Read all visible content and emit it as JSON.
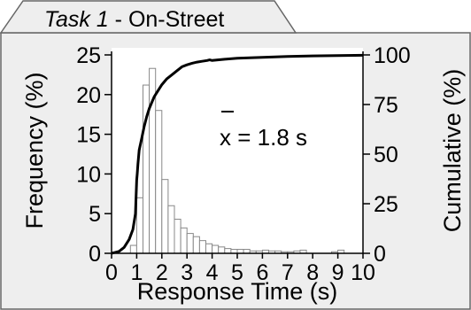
{
  "panel": {
    "title_italic": "Task 1",
    "title_rest": " - On-Street"
  },
  "chart_data": {
    "type": "bar",
    "xlabel": "Response Time (s)",
    "ylabel_left": "Frequency (%)",
    "ylabel_right": "Cumulative (%)",
    "xlim": [
      0,
      10
    ],
    "ylim_left": [
      0,
      25
    ],
    "ylim_right": [
      0,
      100
    ],
    "x_ticks": [
      "0",
      "1",
      "2",
      "3",
      "4",
      "5",
      "6",
      "7",
      "8",
      "9",
      "10"
    ],
    "y_left_ticks": [
      "0",
      "5",
      "10",
      "15",
      "20",
      "25"
    ],
    "y_right_ticks": [
      "0",
      "25",
      "50",
      "75",
      "100"
    ],
    "bin_width": 0.25,
    "bins_start": [
      0.75,
      1.0,
      1.25,
      1.5,
      1.75,
      2.0,
      2.25,
      2.5,
      2.75,
      3.0,
      3.25,
      3.5,
      3.75,
      4.0,
      4.25,
      4.5,
      4.75,
      5.0,
      5.25,
      5.5,
      5.75,
      6.0,
      6.25,
      6.5,
      6.75,
      7.0,
      7.25,
      7.5,
      8.75,
      9.0
    ],
    "frequency": [
      1.0,
      7.0,
      21.2,
      23.3,
      18.0,
      9.3,
      6.0,
      4.3,
      3.2,
      2.5,
      2.1,
      1.6,
      1.2,
      1.0,
      0.8,
      0.6,
      0.5,
      0.5,
      0.5,
      0.3,
      0.3,
      0.4,
      0.3,
      0.3,
      0.2,
      0.2,
      0.3,
      0.4,
      0.2,
      0.4
    ],
    "cumulative_series": {
      "x": [
        0.0,
        0.3,
        0.5,
        0.7,
        0.85,
        0.95,
        1.0,
        1.02,
        1.05,
        1.1,
        1.2,
        1.3,
        1.4,
        1.5,
        1.6,
        1.7,
        1.8,
        2.0,
        2.2,
        2.4,
        2.6,
        2.8,
        3.0,
        3.2,
        3.4,
        3.6,
        3.8,
        3.9,
        4.0,
        4.5,
        5.0,
        6.0,
        7.0,
        8.0,
        9.0,
        10.0
      ],
      "y": [
        0,
        1,
        3,
        7,
        12,
        20,
        37,
        40,
        45,
        52,
        58,
        64,
        69,
        73,
        76,
        79,
        81,
        85,
        88,
        90,
        92,
        94,
        95,
        95.8,
        96.4,
        96.8,
        97.2,
        97.5,
        97.2,
        97.8,
        98.3,
        98.8,
        99.2,
        99.5,
        99.7,
        99.8
      ]
    },
    "mean_symbol": "x",
    "mean_text": " = 1.8 s"
  }
}
